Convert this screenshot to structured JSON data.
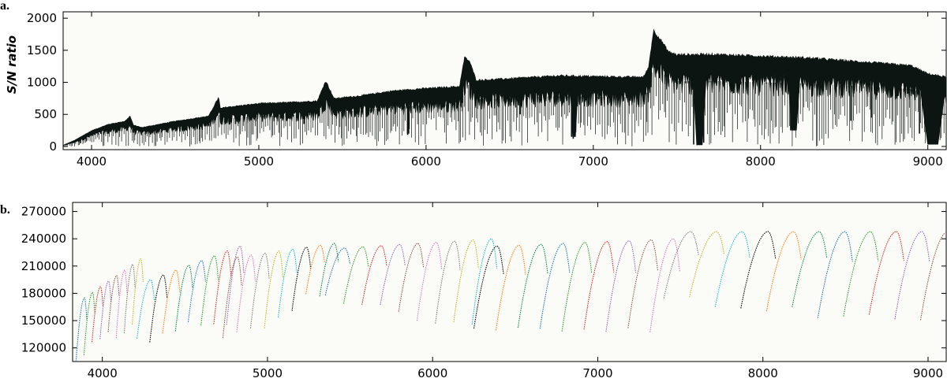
{
  "chart_data": [
    {
      "panel": "a.",
      "type": "line",
      "ylabel": "S/N ratio",
      "xlabel": "",
      "xlim": [
        3830,
        9110
      ],
      "ylim": [
        -50,
        2100
      ],
      "xticks": [
        4000,
        5000,
        6000,
        7000,
        8000,
        9000
      ],
      "yticks": [
        0,
        500,
        1000,
        1500,
        2000
      ],
      "grid": false,
      "series": [
        {
          "color": "#000000",
          "envelope_x": [
            3830,
            3900,
            4000,
            4100,
            4200,
            4230,
            4250,
            4300,
            4500,
            4700,
            4760,
            4770,
            4800,
            5000,
            5200,
            5350,
            5400,
            5450,
            5600,
            5800,
            6000,
            6200,
            6230,
            6260,
            6300,
            6400,
            6600,
            6800,
            7000,
            7200,
            7300,
            7330,
            7360,
            7400,
            7450,
            7500,
            7700,
            7900,
            8100,
            8300,
            8500,
            8700,
            8900,
            9000,
            9110
          ],
          "envelope_y": [
            20,
            100,
            250,
            350,
            400,
            480,
            340,
            300,
            400,
            480,
            780,
            600,
            620,
            680,
            700,
            720,
            1040,
            760,
            800,
            880,
            920,
            950,
            1410,
            1350,
            1050,
            1060,
            1090,
            1120,
            1110,
            1100,
            1100,
            1250,
            1840,
            1700,
            1500,
            1450,
            1460,
            1440,
            1420,
            1400,
            1360,
            1320,
            1280,
            1150,
            1100
          ],
          "absorption_x": [
            3934,
            3968,
            4102,
            4341,
            4861,
            5167,
            5270,
            5890,
            5896,
            6563,
            6870,
            6880,
            6890,
            7600,
            7620,
            7640,
            7660,
            8180,
            8200,
            8540,
            8662,
            8950,
            9000,
            9050
          ],
          "absorption_min": [
            50,
            80,
            200,
            250,
            350,
            400,
            350,
            180,
            200,
            500,
            150,
            120,
            200,
            30,
            20,
            30,
            60,
            250,
            280,
            400,
            450,
            200,
            100,
            30
          ]
        }
      ]
    },
    {
      "panel": "b.",
      "type": "line",
      "xlabel": "",
      "ylabel": "",
      "xlim": [
        3820,
        9110
      ],
      "ylim": [
        105000,
        280000
      ],
      "xticks": [
        4000,
        5000,
        6000,
        7000,
        8000,
        9000
      ],
      "yticks": [
        120000,
        150000,
        180000,
        210000,
        240000,
        270000
      ],
      "grid": false,
      "order_groups": [
        {
          "start": 3840,
          "end": 4230,
          "peak_start": 175000,
          "peak_end": 218000,
          "bottom_start": 110000,
          "bottom_end": 145000
        },
        {
          "start": 4210,
          "end": 4830,
          "peak_start": 195000,
          "peak_end": 232000,
          "bottom_start": 130000,
          "bottom_end": 150000
        },
        {
          "start": 4730,
          "end": 5400,
          "peak_start": 220000,
          "peak_end": 235000,
          "bottom_start": 125000,
          "bottom_end": 180000
        },
        {
          "start": 5350,
          "end": 6350,
          "peak_start": 230000,
          "peak_end": 240000,
          "bottom_start": 175000,
          "bottom_end": 140000
        },
        {
          "start": 6250,
          "end": 7450,
          "peak_start": 232000,
          "peak_end": 240000,
          "bottom_start": 140000,
          "bottom_end": 135000
        },
        {
          "start": 7400,
          "end": 9110,
          "peak_start": 248000,
          "peak_end": 248000,
          "bottom_start": 175000,
          "bottom_end": 150000
        }
      ],
      "palette": [
        "#1f77b4",
        "#2ca02c",
        "#d62728",
        "#9467bd",
        "#8c564b",
        "#e377c2",
        "#7f7f7f",
        "#bcbd22",
        "#17becf",
        "#000000",
        "#ff7f0e",
        "#0a8a4a"
      ]
    }
  ]
}
